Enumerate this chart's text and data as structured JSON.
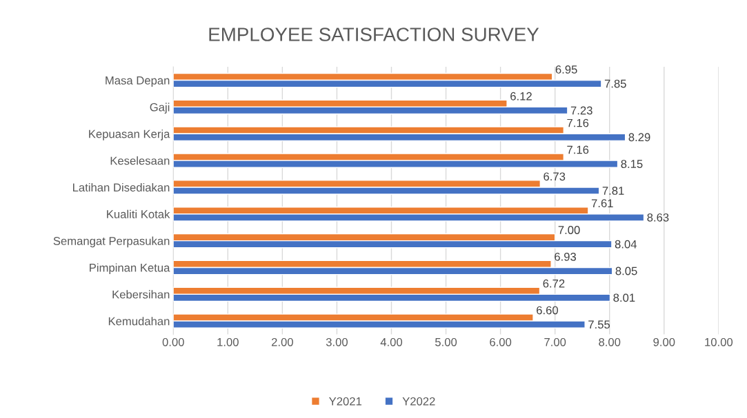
{
  "chart_data": {
    "type": "bar",
    "orientation": "horizontal",
    "title": "EMPLOYEE SATISFACTION SURVEY",
    "categories": [
      "Masa Depan",
      "Gaji",
      "Kepuasan Kerja",
      "Keselesaan",
      "Latihan Disediakan",
      "Kualiti Kotak",
      "Semangat Perpasukan",
      "Pimpinan Ketua",
      "Kebersihan",
      "Kemudahan"
    ],
    "series": [
      {
        "name": "Y2021",
        "color": "#ed7d31",
        "values": [
          6.95,
          6.12,
          7.16,
          7.16,
          6.73,
          7.61,
          7.0,
          6.93,
          6.72,
          6.6
        ],
        "value_labels": [
          "6.95",
          "6.12",
          "7.16",
          "7.16",
          "6.73",
          "7.61",
          "7.00",
          "6.93",
          "6.72",
          "6.60"
        ]
      },
      {
        "name": "Y2022",
        "color": "#4472c4",
        "values": [
          7.85,
          7.23,
          8.29,
          8.15,
          7.81,
          8.63,
          8.04,
          8.05,
          8.01,
          7.55
        ],
        "value_labels": [
          "7.85",
          "7.23",
          "8.29",
          "8.15",
          "7.81",
          "8.63",
          "8.04",
          "8.05",
          "8.01",
          "7.55"
        ]
      }
    ],
    "xlim": [
      0,
      10
    ],
    "xticks": [
      {
        "value": 0,
        "label": "0.00"
      },
      {
        "value": 1,
        "label": "1.00"
      },
      {
        "value": 2,
        "label": "2.00"
      },
      {
        "value": 3,
        "label": "3.00"
      },
      {
        "value": 4,
        "label": "4.00"
      },
      {
        "value": 5,
        "label": "5.00"
      },
      {
        "value": 6,
        "label": "6.00"
      },
      {
        "value": 7,
        "label": "7.00"
      },
      {
        "value": 8,
        "label": "8.00"
      },
      {
        "value": 9,
        "label": "9.00"
      },
      {
        "value": 10,
        "label": "10.00"
      }
    ],
    "grid": "x",
    "legend": "bottom"
  }
}
